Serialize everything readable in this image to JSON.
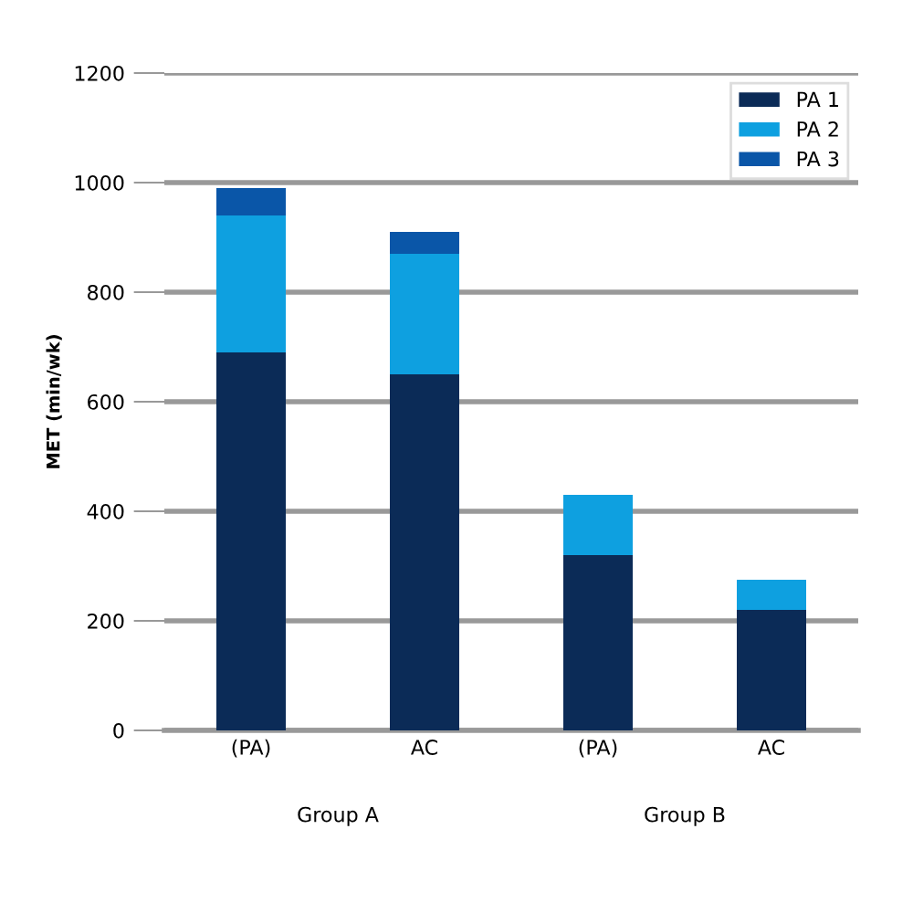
{
  "chart_data": {
    "type": "bar",
    "stacked": true,
    "ylabel": "MET (min/wk)",
    "categories": [
      "(PA)",
      "AC",
      "(PA)",
      "AC"
    ],
    "series": [
      {
        "name": "PA 1",
        "color": "#0b2b57",
        "values": [
          690,
          650,
          320,
          220
        ]
      },
      {
        "name": "PA 2",
        "color": "#0ea0e0",
        "values": [
          250,
          220,
          110,
          55
        ]
      },
      {
        "name": "PA 3",
        "color": "#0a56a8",
        "values": [
          50,
          40,
          0,
          0
        ]
      }
    ],
    "annotations": [
      "Group A",
      "Group B"
    ],
    "ylim": [
      0,
      1200
    ],
    "yticks": [
      0,
      200,
      400,
      600,
      800,
      1000,
      1200
    ],
    "grid": "y",
    "legend": "top right"
  }
}
